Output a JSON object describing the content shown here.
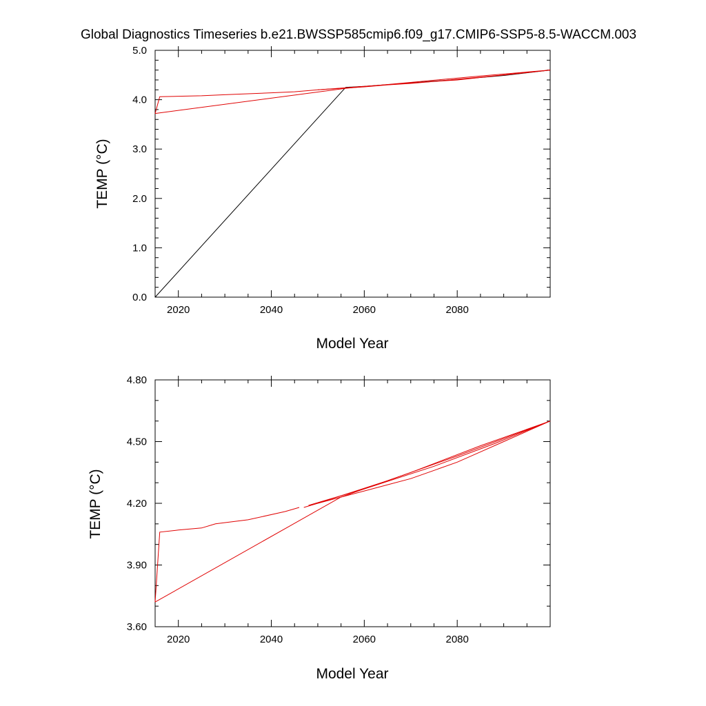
{
  "title": "Global Diagnostics Timeseries b.e21.BWSSP585cmip6.f09_g17.CMIP6-SSP5-8.5-WACCM.003",
  "colors": {
    "red": "#e00000",
    "darkred": "#b00000",
    "black": "#000000"
  },
  "chart_data": [
    {
      "type": "line",
      "xlabel": "Model Year",
      "ylabel": "TEMP (°C)",
      "xlim": [
        2015,
        2100
      ],
      "ylim": [
        0.0,
        5.0
      ],
      "x_ticks": [
        2020,
        2040,
        2060,
        2080
      ],
      "x_tick_labels": [
        "2020",
        "2040",
        "2060",
        "2080"
      ],
      "y_ticks": [
        0.0,
        1.0,
        2.0,
        3.0,
        4.0,
        5.0
      ],
      "y_tick_labels": [
        "0.0",
        "1.0",
        "2.0",
        "3.0",
        "4.0",
        "5.0"
      ],
      "grid": false,
      "series": [
        {
          "color": "#000000",
          "x": [
            2015,
            2056,
            2060,
            2070,
            2080,
            2090,
            2100
          ],
          "y": [
            0.0,
            4.25,
            4.27,
            4.34,
            4.41,
            4.49,
            4.6
          ]
        },
        {
          "color": "#e00000",
          "x": [
            2015,
            2016,
            2020,
            2025,
            2030,
            2035,
            2040,
            2045,
            2050,
            2055,
            2060,
            2065,
            2070,
            2075,
            2080,
            2085,
            2090,
            2095,
            2100
          ],
          "y": [
            3.72,
            4.06,
            4.07,
            4.08,
            4.1,
            4.12,
            4.14,
            4.16,
            4.2,
            4.23,
            4.26,
            4.3,
            4.33,
            4.37,
            4.4,
            4.45,
            4.5,
            4.55,
            4.6
          ]
        },
        {
          "color": "#e00000",
          "x": [
            2015,
            2056,
            2070,
            2085,
            2100
          ],
          "y": [
            3.72,
            4.23,
            4.35,
            4.48,
            4.6
          ]
        },
        {
          "color": "#e00000",
          "x": [
            2050,
            2060,
            2075,
            2090,
            2100
          ],
          "y": [
            4.2,
            4.27,
            4.37,
            4.5,
            4.6
          ]
        }
      ]
    },
    {
      "type": "line",
      "xlabel": "Model Year",
      "ylabel": "TEMP (°C)",
      "xlim": [
        2015,
        2100
      ],
      "ylim": [
        3.6,
        4.8
      ],
      "x_ticks": [
        2020,
        2040,
        2060,
        2080
      ],
      "x_tick_labels": [
        "2020",
        "2040",
        "2060",
        "2080"
      ],
      "y_ticks": [
        3.6,
        3.9,
        4.2,
        4.5,
        4.8
      ],
      "y_tick_labels": [
        "3.60",
        "3.90",
        "4.20",
        "4.50",
        "4.80"
      ],
      "grid": false,
      "series": [
        {
          "color": "#e00000",
          "x": [
            2015,
            2016,
            2020,
            2025,
            2028,
            2035,
            2043,
            2046
          ],
          "y": [
            3.72,
            4.06,
            4.07,
            4.08,
            4.1,
            4.12,
            4.16,
            4.18
          ]
        },
        {
          "color": "#e00000",
          "x": [
            2047,
            2050,
            2055,
            2060,
            2065,
            2070,
            2075,
            2080,
            2085,
            2090,
            2095,
            2100
          ],
          "y": [
            4.18,
            4.2,
            4.23,
            4.26,
            4.29,
            4.32,
            4.36,
            4.4,
            4.45,
            4.5,
            4.55,
            4.6
          ]
        },
        {
          "color": "#e00000",
          "x": [
            2015,
            2055,
            2070,
            2085,
            2100
          ],
          "y": [
            3.72,
            4.23,
            4.35,
            4.48,
            4.6
          ]
        },
        {
          "color": "#e00000",
          "x": [
            2048,
            2060,
            2075,
            2088,
            2100
          ],
          "y": [
            4.19,
            4.27,
            4.38,
            4.49,
            4.6
          ]
        },
        {
          "color": "#e00000",
          "x": [
            2050,
            2065,
            2080,
            2100
          ],
          "y": [
            4.2,
            4.31,
            4.43,
            4.6
          ]
        }
      ]
    }
  ]
}
